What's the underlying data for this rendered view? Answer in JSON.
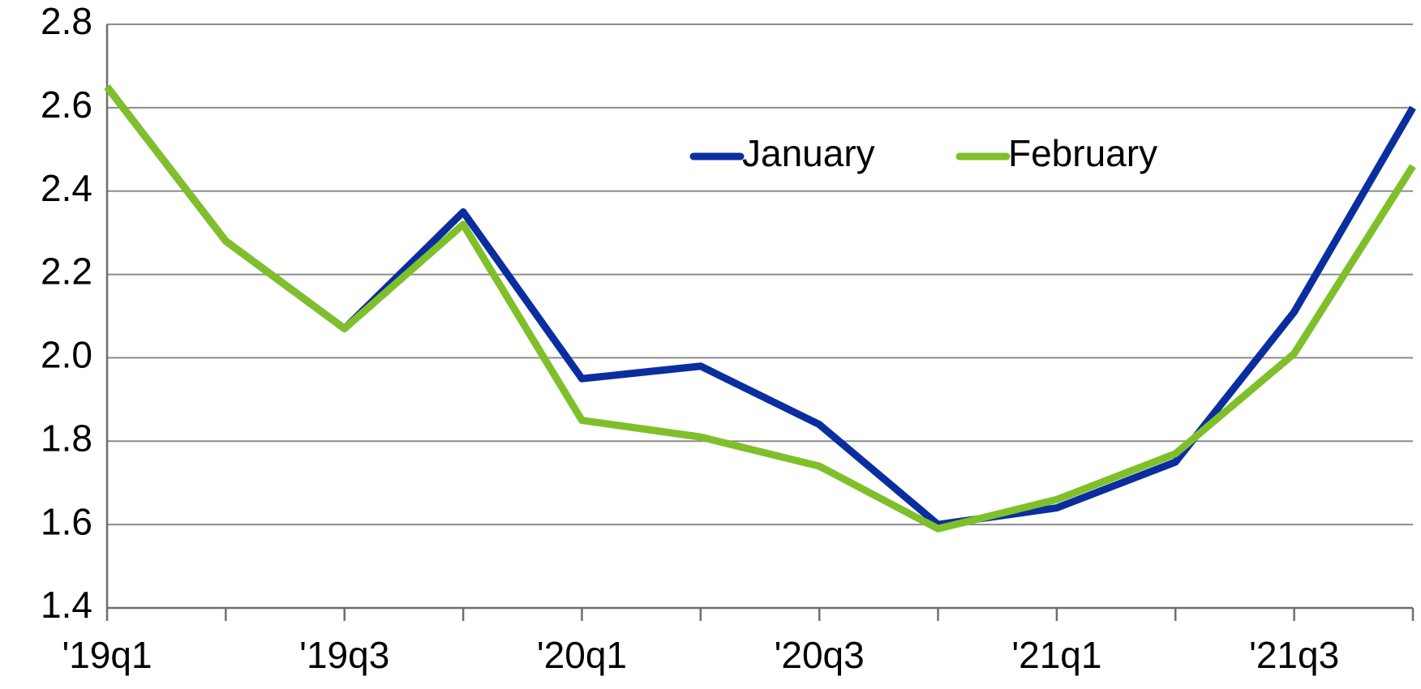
{
  "chart_data": {
    "type": "line",
    "categories": [
      "'19q1",
      null,
      "'19q3",
      null,
      "'20q1",
      null,
      "'20q3",
      null,
      "'21q1",
      null,
      "'21q3",
      null
    ],
    "series": [
      {
        "name": "January",
        "color": "#0a2ea0",
        "values": [
          2.65,
          2.28,
          2.07,
          2.35,
          1.95,
          1.98,
          1.84,
          1.6,
          1.64,
          1.75,
          2.11,
          2.6
        ]
      },
      {
        "name": "February",
        "color": "#7fc02a",
        "values": [
          2.65,
          2.28,
          2.07,
          2.32,
          1.85,
          1.81,
          1.74,
          1.59,
          1.66,
          1.77,
          2.01,
          2.46
        ]
      }
    ],
    "ylim": [
      1.4,
      2.8
    ],
    "yticks": [
      1.4,
      1.6,
      1.8,
      {
        "value": 2,
        "label": "2.0"
      },
      2.2,
      2.4,
      2.6,
      2.8
    ],
    "grid": true,
    "legend": "top"
  }
}
